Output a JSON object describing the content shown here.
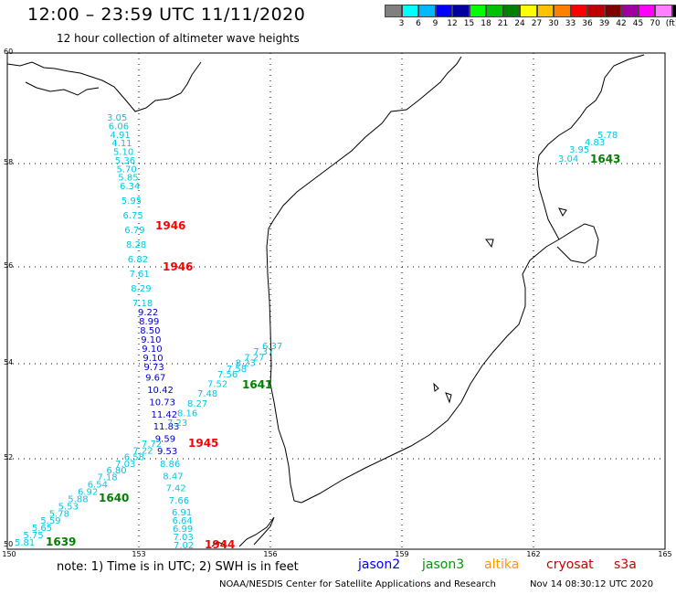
{
  "header": {
    "title": "12:00 – 23:59 UTC 11/11/2020",
    "subtitle": "12 hour collection of altimeter wave heights"
  },
  "scale": {
    "unit_label": "(ft)",
    "colors": [
      "#808080",
      "#00ffff",
      "#00b8ff",
      "#0000ff",
      "#0000a0",
      "#00ff00",
      "#00c000",
      "#008000",
      "#ffff00",
      "#ffc000",
      "#ff8000",
      "#ff0000",
      "#c00000",
      "#800000",
      "#a000a0",
      "#ff00ff",
      "#ff80ff",
      "#000000"
    ],
    "labels": [
      "3",
      "6",
      "9",
      "12",
      "15",
      "18",
      "21",
      "24",
      "27",
      "30",
      "33",
      "36",
      "39",
      "42",
      "45",
      "70"
    ]
  },
  "axes": {
    "lon_ticks": [
      "150",
      "153",
      "156",
      "159",
      "162",
      "165"
    ],
    "lat_ticks": [
      "50",
      "52",
      "54",
      "56",
      "58",
      "60"
    ]
  },
  "map": {
    "pass_labels": [
      {
        "text": "1946",
        "color": "#ff0000"
      },
      {
        "text": "1946",
        "color": "#ff0000"
      },
      {
        "text": "1945",
        "color": "#ff0000"
      },
      {
        "text": "1944",
        "color": "#ff0000"
      },
      {
        "text": "1641",
        "color": "#008000"
      },
      {
        "text": "1640",
        "color": "#008000"
      },
      {
        "text": "1639",
        "color": "#008000"
      },
      {
        "text": "1643",
        "color": "#008000"
      }
    ],
    "track_s3a_north": [
      "3.05",
      "6.06",
      "4.91",
      "4.11",
      "5.10",
      "5.36",
      "5.70",
      "5.85",
      "6.34",
      "5.95",
      "6.75",
      "6.79",
      "8.28",
      "6.82",
      "7.61",
      "8.29",
      "7.18"
    ],
    "track_s3a_south": [
      "8.86",
      "8.47",
      "7.42",
      "7.66",
      "6.91",
      "6.64",
      "6.99",
      "7.03",
      "7.02"
    ],
    "track_jason2": [
      "9.22",
      "8.99",
      "8.50",
      "9.10",
      "9.10",
      "9.10",
      "9.73",
      "9.67",
      "10.42",
      "10.73",
      "11.42",
      "11.83",
      "9.59",
      "9.53"
    ],
    "track_jason3_a": [
      "6.37",
      "7.37",
      "7.27",
      "8.23",
      "7.58",
      "7.56",
      "7.52",
      "7.48",
      "8.27",
      "8.16",
      "7.23"
    ],
    "track_jason3_b": [
      "7.72",
      "7.22",
      "6.58",
      "7.03",
      "6.80",
      "7.18",
      "6.54",
      "6.92",
      "5.88",
      "5.53",
      "5.78",
      "5.59",
      "5.65",
      "5.75",
      "5.81"
    ],
    "track_jason3_c": [
      "3.04",
      "3.95",
      "4.83",
      "5.78"
    ]
  },
  "legend": {
    "note": "note:  1) Time is in UTC;  2) SWH is in feet",
    "sats": [
      {
        "name": "jason2",
        "color": "#0000ff"
      },
      {
        "name": "jason3",
        "color": "#009900"
      },
      {
        "name": "altika",
        "color": "#ff9900"
      },
      {
        "name": "cryosat",
        "color": "#cc0000"
      },
      {
        "name": "s3a",
        "color": "#cc0000"
      }
    ]
  },
  "footer": {
    "credit": "NOAA/NESDIS Center for Satellite Applications and Research",
    "timestamp": "Nov 14 08:30:12 UTC 2020"
  }
}
